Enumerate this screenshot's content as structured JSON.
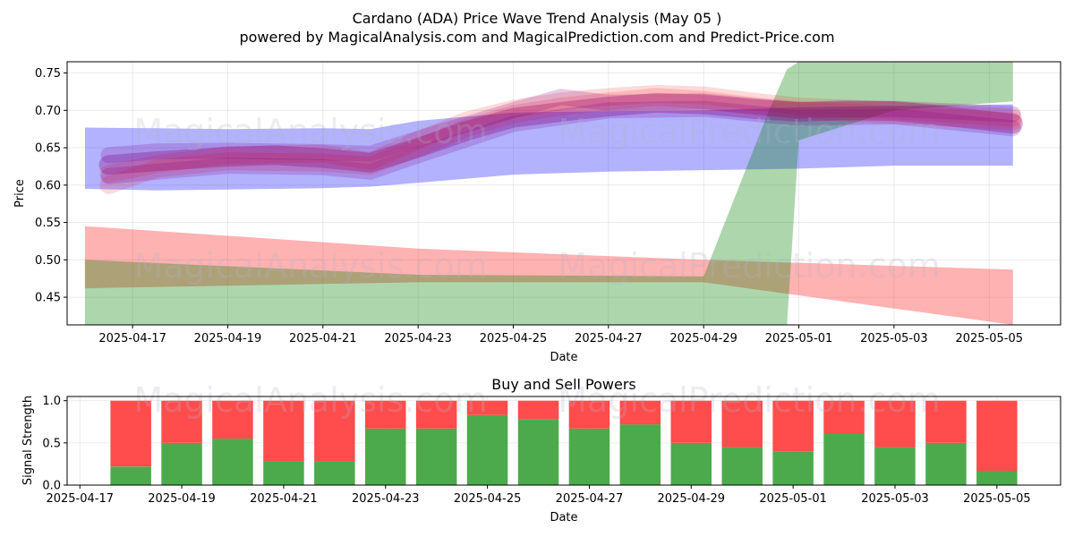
{
  "figure": {
    "title": "Cardano (ADA) Price Wave Trend Analysis (May 05 )",
    "subtitle": "powered by MagicalAnalysis.com and MagicalPrediction.com and Predict-Price.com",
    "watermarks": [
      "MagicalAnalysis.com",
      "MagicalPrediction.com"
    ]
  },
  "chart_data": [
    {
      "type": "area",
      "title": "",
      "xlabel": "Date",
      "ylabel": "Price",
      "xlim": [
        "2025-04-15T15:00",
        "2025-05-06T12:00"
      ],
      "ylim": [
        0.413,
        0.765
      ],
      "x_ticks": [
        "2025-04-17",
        "2025-04-19",
        "2025-04-21",
        "2025-04-23",
        "2025-04-25",
        "2025-04-27",
        "2025-04-29",
        "2025-05-01",
        "2025-05-03",
        "2025-05-05"
      ],
      "y_ticks": [
        0.45,
        0.5,
        0.55,
        0.6,
        0.65,
        0.7,
        0.75
      ],
      "y_tick_labels": [
        "0.45",
        "0.50",
        "0.55",
        "0.60",
        "0.65",
        "0.70",
        "0.75"
      ],
      "grid": true,
      "colors": {
        "red": "#ff0000",
        "blue": "#0000ff",
        "green": "#008000",
        "purple": "#800080"
      },
      "bands": [
        {
          "color": "red",
          "opacity": 0.3,
          "x": [
            "2025-04-16",
            "2025-04-23",
            "2025-04-29",
            "2025-05-05T12:00"
          ],
          "upper": [
            0.545,
            0.515,
            0.5,
            0.487
          ],
          "lower": [
            0.462,
            0.47,
            0.47,
            0.413
          ]
        },
        {
          "color": "blue",
          "opacity": 0.3,
          "x": [
            "2025-04-16",
            "2025-04-17T12:00",
            "2025-04-19",
            "2025-04-21",
            "2025-04-22",
            "2025-04-23",
            "2025-04-25",
            "2025-04-27",
            "2025-04-29",
            "2025-05-01",
            "2025-05-03",
            "2025-05-05T12:00"
          ],
          "upper": [
            0.677,
            0.676,
            0.675,
            0.676,
            0.675,
            0.686,
            0.697,
            0.699,
            0.7,
            0.704,
            0.706,
            0.708
          ],
          "lower": [
            0.595,
            0.593,
            0.594,
            0.596,
            0.598,
            0.603,
            0.614,
            0.618,
            0.62,
            0.622,
            0.626,
            0.626
          ]
        },
        {
          "color": "green",
          "opacity": 0.32,
          "x": [
            "2025-04-16",
            "2025-04-23",
            "2025-04-29",
            "2025-04-30T09:00",
            "2025-04-30T18:00",
            "2025-05-01",
            "2025-05-03",
            "2025-05-05T12:00"
          ],
          "upper": [
            0.5,
            0.48,
            0.478,
            0.7,
            0.755,
            0.765,
            0.765,
            0.765
          ],
          "lower": [
            0.413,
            0.413,
            0.413,
            0.413,
            0.413,
            0.66,
            0.7,
            0.712
          ]
        }
      ],
      "wave_lines": [
        {
          "color": "purple",
          "opacity": 0.3,
          "width": 22,
          "x": [
            "2025-04-16T12:00",
            "2025-04-17T12:00",
            "2025-04-19",
            "2025-04-20",
            "2025-04-21",
            "2025-04-22",
            "2025-04-23",
            "2025-04-24",
            "2025-04-25",
            "2025-04-26",
            "2025-04-27",
            "2025-04-28",
            "2025-04-29",
            "2025-04-30",
            "2025-05-01",
            "2025-05-02",
            "2025-05-03",
            "2025-05-04",
            "2025-05-05T12:00"
          ],
          "y": [
            0.627,
            0.632,
            0.638,
            0.64,
            0.636,
            0.63,
            0.65,
            0.672,
            0.69,
            0.698,
            0.705,
            0.71,
            0.708,
            0.702,
            0.698,
            0.7,
            0.699,
            0.693,
            0.682
          ]
        },
        {
          "color": "red",
          "opacity": 0.15,
          "width": 20,
          "x": [
            "2025-04-16T12:00",
            "2025-04-17T12:00",
            "2025-04-19",
            "2025-04-21",
            "2025-04-22",
            "2025-04-23",
            "2025-04-24",
            "2025-04-25",
            "2025-04-26",
            "2025-04-27",
            "2025-04-28",
            "2025-04-29",
            "2025-04-30",
            "2025-05-01",
            "2025-05-03",
            "2025-05-05T12:00"
          ],
          "y": [
            0.615,
            0.628,
            0.64,
            0.642,
            0.632,
            0.66,
            0.686,
            0.702,
            0.712,
            0.718,
            0.722,
            0.72,
            0.712,
            0.705,
            0.7,
            0.69
          ]
        },
        {
          "color": "red",
          "opacity": 0.15,
          "width": 20,
          "x": [
            "2025-04-16T12:00",
            "2025-04-17T12:00",
            "2025-04-19",
            "2025-04-21",
            "2025-04-22",
            "2025-04-23",
            "2025-04-24",
            "2025-04-25",
            "2025-04-26",
            "2025-04-27",
            "2025-04-28",
            "2025-04-29",
            "2025-04-30",
            "2025-05-01",
            "2025-05-03",
            "2025-05-05T12:00"
          ],
          "y": [
            0.6,
            0.622,
            0.632,
            0.63,
            0.626,
            0.65,
            0.676,
            0.695,
            0.705,
            0.712,
            0.718,
            0.714,
            0.706,
            0.7,
            0.694,
            0.685
          ]
        },
        {
          "color": "purple",
          "opacity": 0.2,
          "width": 18,
          "x": [
            "2025-04-16T12:00",
            "2025-04-17T12:00",
            "2025-04-19",
            "2025-04-21",
            "2025-04-22",
            "2025-04-23",
            "2025-04-25",
            "2025-04-26",
            "2025-04-27",
            "2025-04-29",
            "2025-05-01",
            "2025-05-03",
            "2025-05-05T12:00"
          ],
          "y": [
            0.64,
            0.645,
            0.646,
            0.644,
            0.642,
            0.662,
            0.7,
            0.718,
            0.71,
            0.712,
            0.7,
            0.702,
            0.695
          ]
        },
        {
          "color": "purple",
          "opacity": 0.2,
          "width": 18,
          "x": [
            "2025-04-16T12:00",
            "2025-04-17T12:00",
            "2025-04-19",
            "2025-04-21",
            "2025-04-22",
            "2025-04-23",
            "2025-04-25",
            "2025-04-27",
            "2025-04-29",
            "2025-05-01",
            "2025-05-03",
            "2025-05-05T12:00"
          ],
          "y": [
            0.612,
            0.618,
            0.626,
            0.624,
            0.618,
            0.64,
            0.682,
            0.7,
            0.702,
            0.69,
            0.692,
            0.676
          ]
        }
      ]
    },
    {
      "type": "bar",
      "title": "Buy and Sell Powers",
      "xlabel": "Date",
      "ylabel": "Signal Strength",
      "xlim": [
        "2025-04-16T18:00",
        "2025-05-06T06:00"
      ],
      "ylim": [
        0,
        1.05
      ],
      "x_ticks": [
        "2025-04-17",
        "2025-04-19",
        "2025-04-21",
        "2025-04-23",
        "2025-04-25",
        "2025-04-27",
        "2025-04-29",
        "2025-05-01",
        "2025-05-03",
        "2025-05-05"
      ],
      "y_ticks": [
        0,
        0.5,
        1.0
      ],
      "y_tick_labels": [
        "0.0",
        "0.5",
        "1.0"
      ],
      "grid": true,
      "colors": {
        "buy": "#4caa4c",
        "sell": "#ff4c4c"
      },
      "categories": [
        "2025-04-18",
        "2025-04-19",
        "2025-04-20",
        "2025-04-21",
        "2025-04-22",
        "2025-04-23",
        "2025-04-24",
        "2025-04-25",
        "2025-04-26",
        "2025-04-27",
        "2025-04-28",
        "2025-04-29",
        "2025-04-30",
        "2025-05-01",
        "2025-05-02",
        "2025-05-03",
        "2025-05-04",
        "2025-05-05"
      ],
      "series": [
        {
          "values": [
            0.22,
            0.5,
            0.55,
            0.28,
            0.28,
            0.67,
            0.67,
            0.83,
            0.78,
            0.67,
            0.72,
            0.5,
            0.45,
            0.4,
            0.61,
            0.45,
            0.5,
            0.17
          ]
        },
        {
          "values": [
            0.78,
            0.5,
            0.45,
            0.72,
            0.72,
            0.33,
            0.33,
            0.17,
            0.22,
            0.33,
            0.28,
            0.5,
            0.55,
            0.6,
            0.39,
            0.55,
            0.5,
            0.83
          ]
        }
      ]
    }
  ]
}
